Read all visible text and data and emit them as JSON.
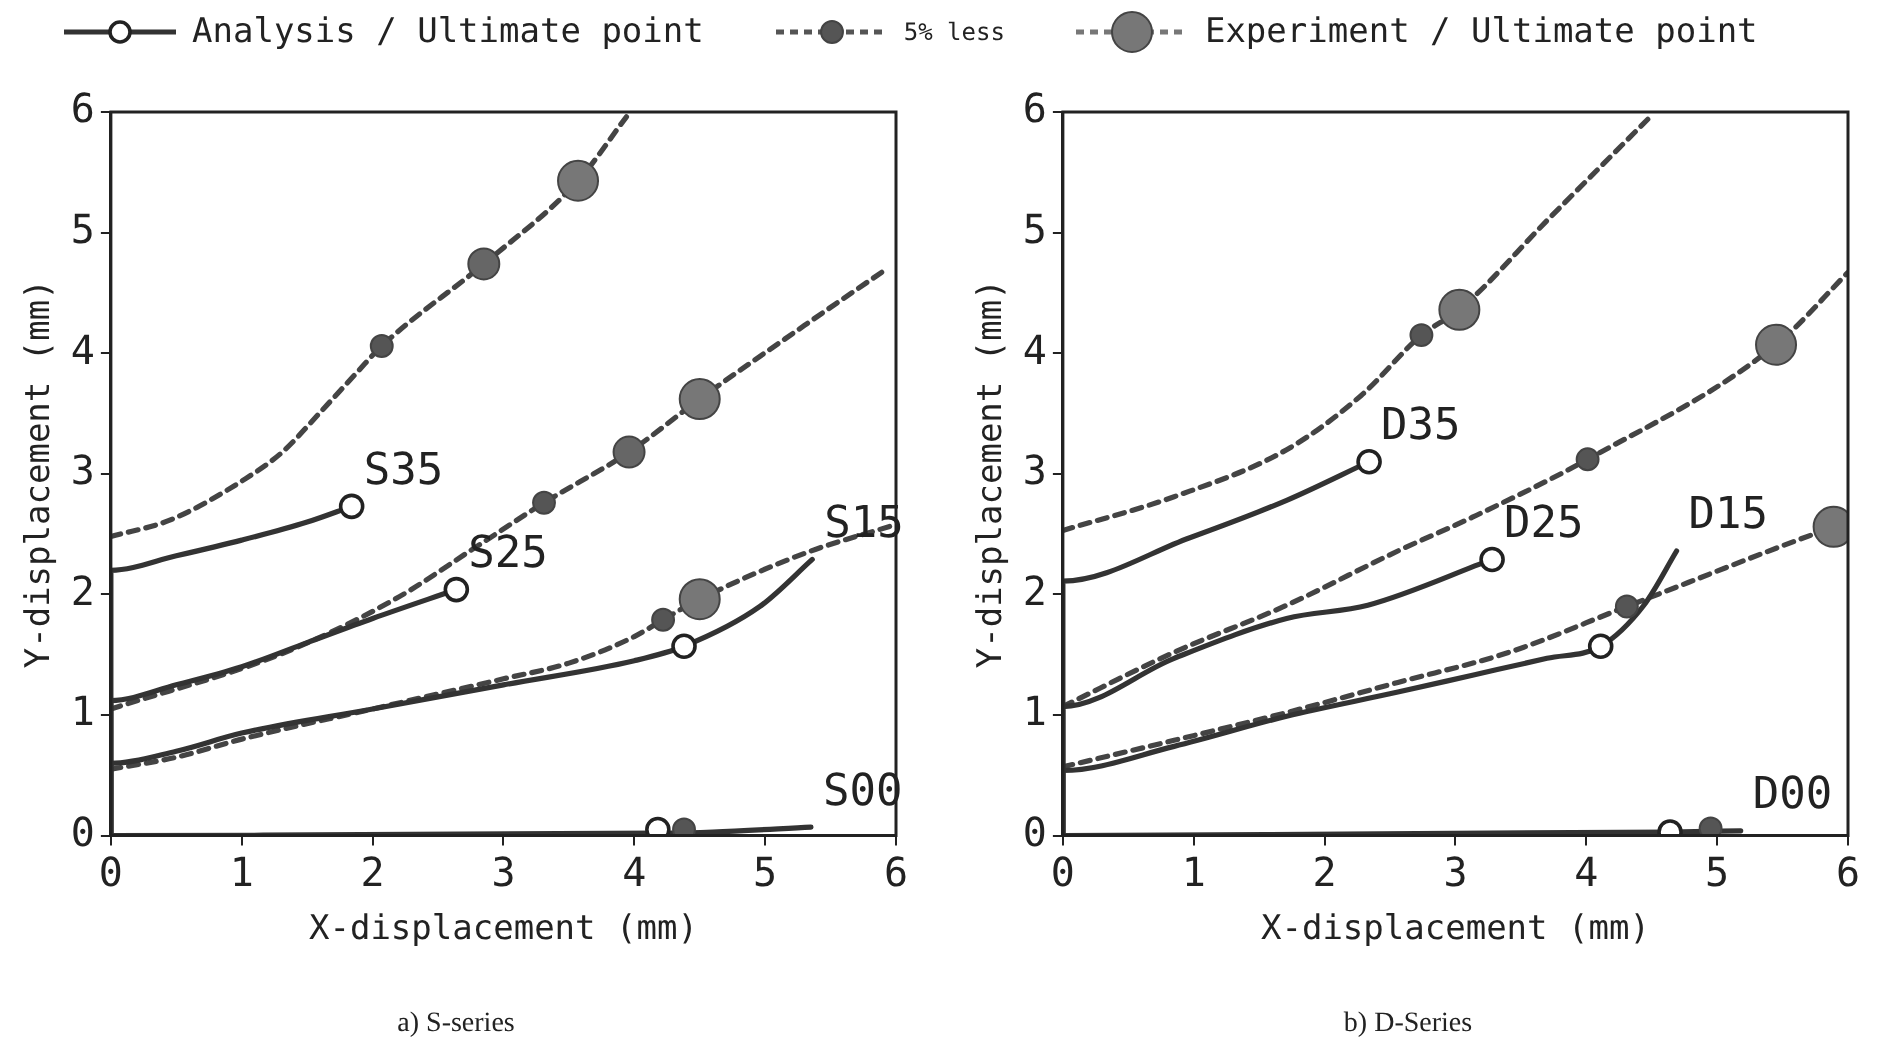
{
  "chart_data": [
    {
      "type": "line",
      "title": "a) S-series",
      "xlabel": "X-displacement (mm)",
      "ylabel": "Y-displacement (mm)",
      "xlim": [
        0,
        6
      ],
      "ylim": [
        0,
        6
      ],
      "xticks": [
        0,
        1,
        2,
        3,
        4,
        5,
        6
      ],
      "yticks": [
        0,
        1,
        2,
        3,
        4,
        5,
        6
      ],
      "grid": false,
      "legend": "top",
      "series": [
        {
          "type": "line",
          "name": "S35",
          "color": "#333333",
          "line_style": "solid",
          "x": [
            0,
            0,
            0.5,
            1,
            1.5,
            1.84
          ],
          "values": [
            0,
            2.2,
            2.32,
            2.45,
            2.6,
            2.73
          ]
        },
        {
          "type": "line",
          "name": "S25",
          "color": "#333333",
          "line_style": "solid",
          "x": [
            0,
            0,
            0.5,
            1,
            1.5,
            2,
            2.64
          ],
          "values": [
            0,
            1.12,
            1.25,
            1.4,
            1.6,
            1.8,
            2.04
          ]
        },
        {
          "type": "line",
          "name": "S15",
          "color": "#333333",
          "line_style": "solid",
          "x": [
            0,
            0,
            0.5,
            1,
            2,
            3,
            4,
            4.38,
            4.96,
            5.36
          ],
          "values": [
            0,
            0.6,
            0.7,
            0.85,
            1.05,
            1.25,
            1.45,
            1.57,
            1.9,
            2.29
          ]
        },
        {
          "type": "line",
          "name": "S00",
          "color": "#333333",
          "line_style": "solid",
          "x": [
            0,
            4.2,
            4.6,
            5.35
          ],
          "values": [
            0,
            0.02,
            0.03,
            0.07
          ]
        },
        {
          "type": "line",
          "color": "#444444",
          "line_style": "dashed",
          "x": [
            0,
            0.46,
            1.03,
            1.31,
            1.6,
            1.88,
            2.07,
            2.85,
            3.57,
            3.94
          ],
          "values": [
            2.48,
            2.62,
            2.96,
            3.18,
            3.51,
            3.84,
            4.06,
            4.74,
            5.43,
            5.96
          ]
        },
        {
          "type": "line",
          "color": "#444444",
          "line_style": "dashed",
          "x": [
            0,
            1.31,
            2.17,
            2.8,
            3.31,
            3.96,
            4.5,
            5.3,
            5.93
          ],
          "values": [
            1.05,
            1.51,
            1.96,
            2.4,
            2.76,
            3.18,
            3.62,
            4.23,
            4.7
          ]
        },
        {
          "type": "line",
          "color": "#444444",
          "line_style": "dashed",
          "x": [
            0,
            0.5,
            1,
            2,
            3,
            3.5,
            4,
            4.22,
            4.5,
            5.3,
            6
          ],
          "values": [
            0.55,
            0.65,
            0.8,
            1.05,
            1.3,
            1.43,
            1.65,
            1.79,
            1.96,
            2.34,
            2.58
          ]
        },
        {
          "type": "scatter",
          "name": "Analysis / Ultimate point",
          "color": "#ffffff",
          "marker": "circle",
          "x": [
            1.84,
            2.64,
            4.38,
            4.18
          ],
          "values": [
            2.73,
            2.04,
            1.57,
            0.05
          ]
        },
        {
          "type": "bubble",
          "name": "5% less",
          "color": "#555555",
          "marker": "circle",
          "x": [
            2.07,
            3.31,
            4.22,
            4.38
          ],
          "values": [
            4.06,
            2.76,
            1.79,
            0.05
          ],
          "sizes": [
            0.3,
            0.3,
            0.3,
            0.3
          ]
        },
        {
          "type": "bubble",
          "color": "#666666",
          "marker": "circle",
          "x": [
            2.85,
            3.96
          ],
          "values": [
            4.74,
            3.18
          ],
          "sizes": [
            0.6,
            0.6
          ]
        },
        {
          "type": "bubble",
          "name": "Experiment / Ultimate point",
          "color": "#777777",
          "marker": "circle",
          "x": [
            3.57,
            4.5,
            4.5
          ],
          "values": [
            5.43,
            3.62,
            1.96
          ],
          "sizes": [
            1,
            1,
            1
          ]
        }
      ]
    },
    {
      "type": "line",
      "title": "b) D-Series",
      "xlabel": "X-displacement (mm)",
      "ylabel": "Y-displacement (mm)",
      "xlim": [
        0,
        6
      ],
      "ylim": [
        0,
        6
      ],
      "xticks": [
        0,
        1,
        2,
        3,
        4,
        5,
        6
      ],
      "yticks": [
        0,
        1,
        2,
        3,
        4,
        5,
        6
      ],
      "grid": false,
      "series": [
        {
          "type": "line",
          "name": "D35",
          "color": "#333333",
          "line_style": "solid",
          "x": [
            0,
            0,
            0.97,
            1.71,
            2.34
          ],
          "values": [
            0,
            2.11,
            2.47,
            2.78,
            3.1
          ]
        },
        {
          "type": "line",
          "name": "D25",
          "color": "#333333",
          "line_style": "solid",
          "x": [
            0,
            0,
            0.85,
            1.71,
            2.33,
            3.28
          ],
          "values": [
            0,
            1.07,
            1.47,
            1.8,
            1.91,
            2.29
          ]
        },
        {
          "type": "line",
          "name": "D15",
          "color": "#333333",
          "line_style": "solid",
          "x": [
            0,
            0,
            0.85,
            1.71,
            2.56,
            3.13,
            3.7,
            4.11,
            4.44,
            4.69
          ],
          "values": [
            0,
            0.54,
            0.74,
            0.99,
            1.19,
            1.33,
            1.47,
            1.57,
            1.91,
            2.36
          ]
        },
        {
          "type": "line",
          "name": "D00",
          "color": "#333333",
          "line_style": "solid",
          "x": [
            0,
            4.64,
            5.18
          ],
          "values": [
            0,
            0.03,
            0.04
          ]
        },
        {
          "type": "line",
          "color": "#444444",
          "line_style": "dashed",
          "x": [
            0,
            0.85,
            1.71,
            2.28,
            2.74,
            3.03,
            3.7,
            4.47
          ],
          "values": [
            2.53,
            2.81,
            3.2,
            3.65,
            4.15,
            4.36,
            5.1,
            5.94
          ]
        },
        {
          "type": "line",
          "color": "#444444",
          "line_style": "dashed",
          "x": [
            0,
            0.85,
            1.71,
            2.56,
            3.13,
            4.01,
            5.45,
            6
          ],
          "values": [
            1.07,
            1.52,
            1.91,
            2.36,
            2.64,
            3.12,
            4.07,
            4.67
          ]
        },
        {
          "type": "line",
          "color": "#444444",
          "line_style": "dashed",
          "x": [
            0,
            0.85,
            1.71,
            2.56,
            3.41,
            4.31,
            5.89,
            6
          ],
          "values": [
            0.57,
            0.79,
            1.02,
            1.27,
            1.52,
            1.9,
            2.56,
            2.6
          ]
        },
        {
          "type": "scatter",
          "color": "#ffffff",
          "marker": "circle",
          "x": [
            2.34,
            3.28,
            4.11,
            4.64
          ],
          "values": [
            3.1,
            2.29,
            1.57,
            0.03
          ]
        },
        {
          "type": "bubble",
          "color": "#555555",
          "marker": "circle",
          "x": [
            2.74,
            4.01,
            4.31,
            4.95
          ],
          "values": [
            4.15,
            3.12,
            1.9,
            0.06
          ],
          "sizes": [
            0.3,
            0.3,
            0.3,
            0.3
          ]
        },
        {
          "type": "bubble",
          "color": "#777777",
          "marker": "circle",
          "x": [
            3.03,
            5.45,
            5.89
          ],
          "values": [
            4.36,
            4.07,
            2.56
          ],
          "sizes": [
            1,
            1,
            1
          ]
        }
      ]
    }
  ]
}
